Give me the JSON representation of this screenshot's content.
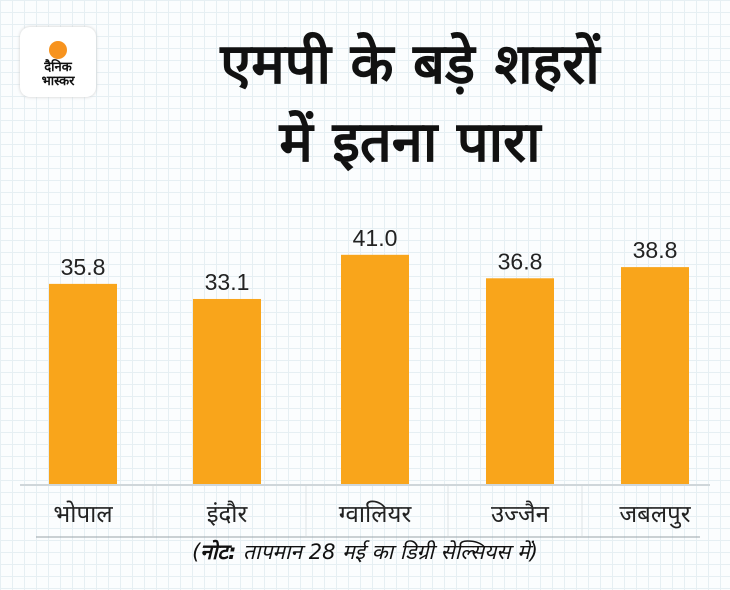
{
  "logo": {
    "line1": "दैनिक",
    "line2": "भास्कर"
  },
  "title": {
    "line1": "एमपी के बड़े शहरों",
    "line2": "में इतना पारा"
  },
  "note": {
    "bold": "नोट:",
    "text": " तापमान 28 मई का डिग्री सेल्सियस में",
    "open": "(",
    "close": ")"
  },
  "colors": {
    "bar": "#f9a51b"
  },
  "chart_data": {
    "type": "bar",
    "title": "एमपी के बड़े शहरों में इतना पारा",
    "categories": [
      "भोपाल",
      "इंदौर",
      "ग्वालियर",
      "उज्जैन",
      "जबलपुर"
    ],
    "values": [
      35.8,
      33.1,
      41.0,
      36.8,
      38.8
    ],
    "labels": [
      "35.8",
      "33.1",
      "41.0",
      "36.8",
      "38.8"
    ],
    "xlabel": "",
    "ylabel": "",
    "ylim": [
      0,
      41
    ],
    "grid": false
  }
}
